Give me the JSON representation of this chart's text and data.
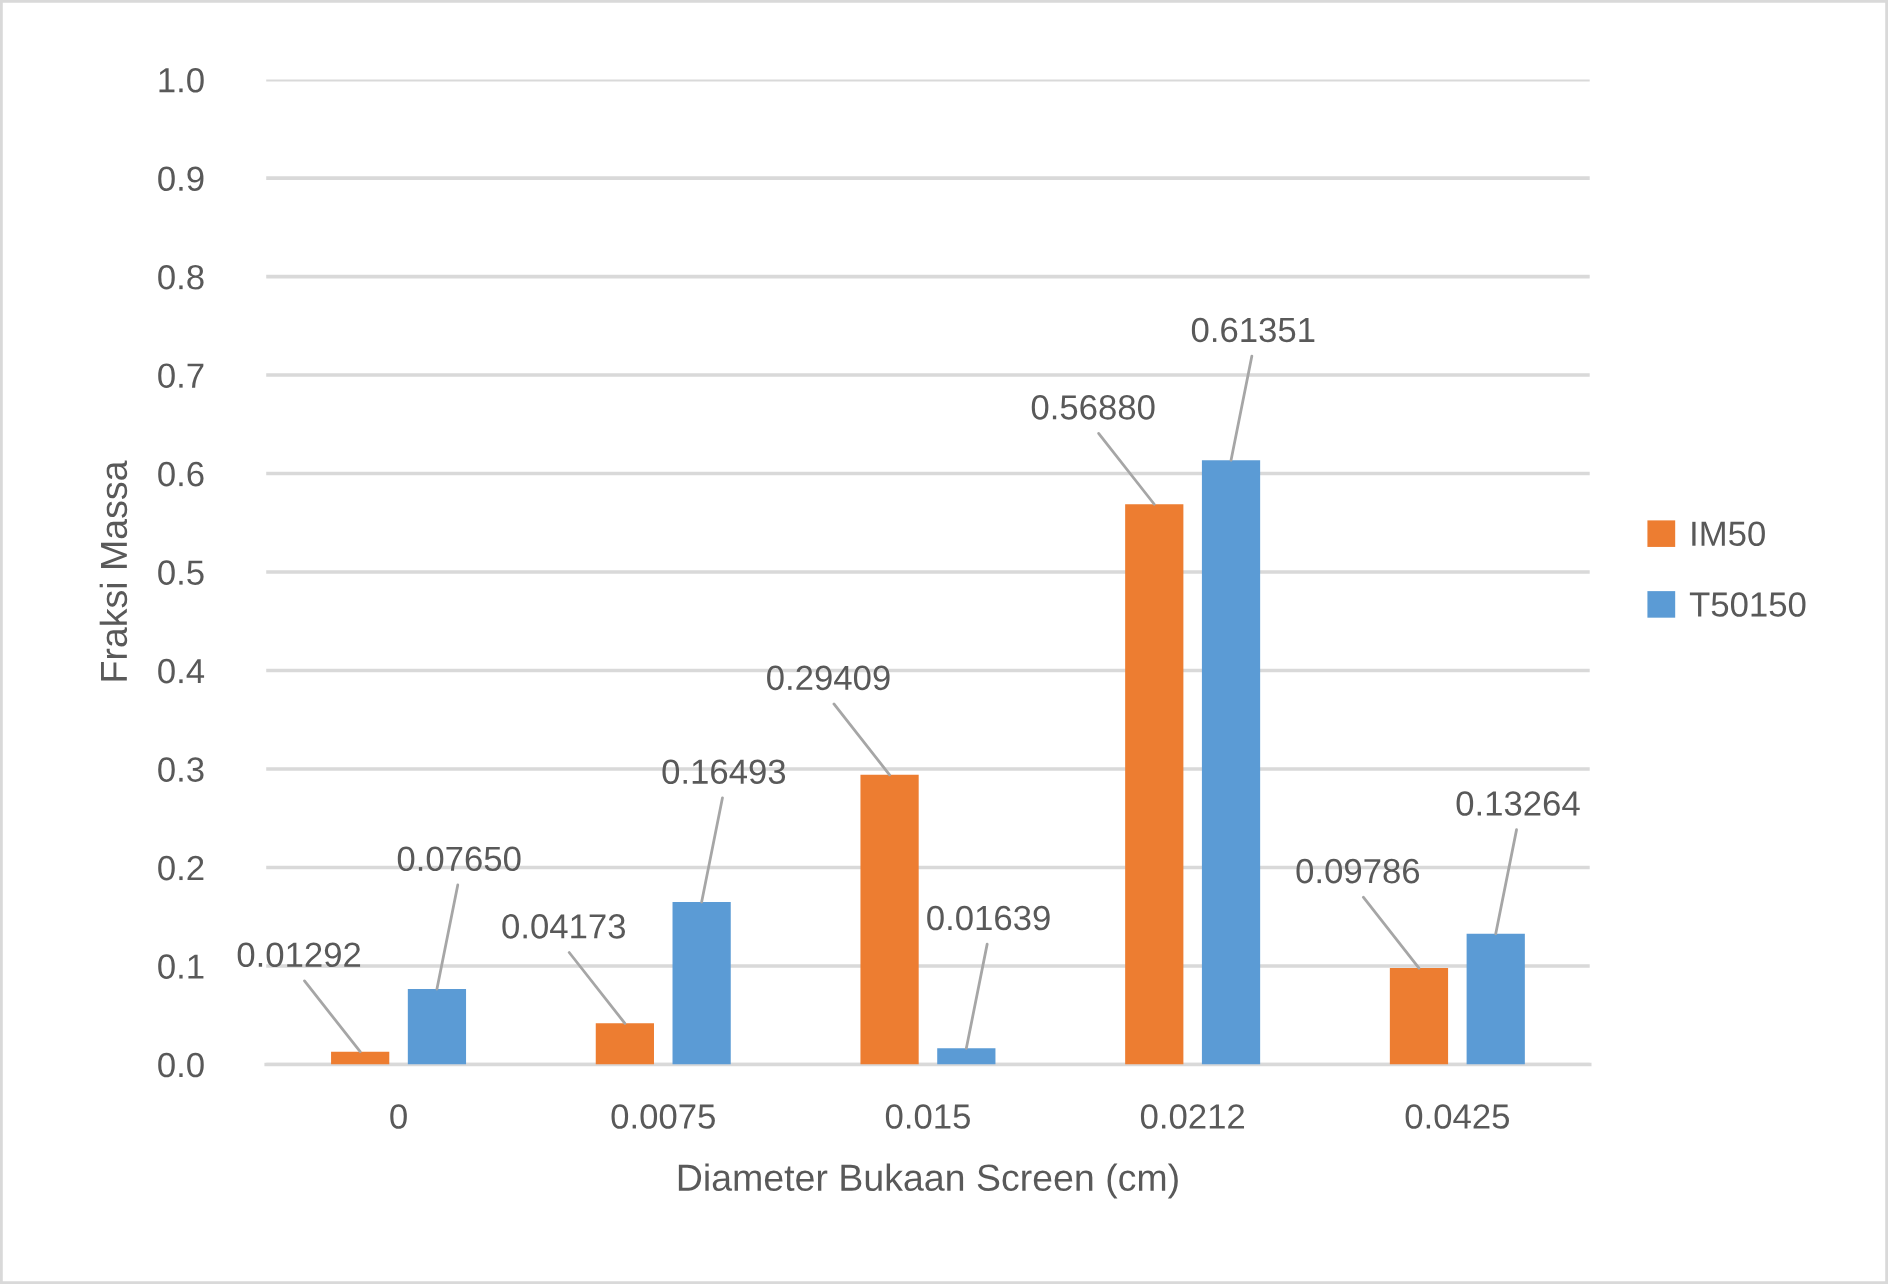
{
  "chart_data": {
    "type": "bar",
    "xlabel": "Diameter Bukaan Screen (cm)",
    "ylabel": "Fraksi Massa",
    "categories": [
      "0",
      "0.0075",
      "0.015",
      "0.0212",
      "0.0425"
    ],
    "series": [
      {
        "name": "IM50",
        "color": "#ed7d31",
        "values": [
          0.01292,
          0.04173,
          0.29409,
          0.5688,
          0.09786
        ],
        "value_labels": [
          "0.01292",
          "0.04173",
          "0.29409",
          "0.56880",
          "0.09786"
        ]
      },
      {
        "name": "T50150",
        "color": "#5b9bd5",
        "values": [
          0.0765,
          0.16493,
          0.01639,
          0.61351,
          0.13264
        ],
        "value_labels": [
          "0.07650",
          "0.16493",
          "0.01639",
          "0.61351",
          "0.13264"
        ]
      }
    ],
    "ylim": [
      0,
      1
    ],
    "yticks": [
      {
        "value": 0,
        "label": "0.0"
      },
      {
        "value": 0.1,
        "label": "0.1"
      },
      {
        "value": 0.2,
        "label": "0.2"
      },
      {
        "value": 0.3,
        "label": "0.3"
      },
      {
        "value": 0.4,
        "label": "0.4"
      },
      {
        "value": 0.5,
        "label": "0.5"
      },
      {
        "value": 0.6,
        "label": "0.6"
      },
      {
        "value": 0.7,
        "label": "0.7"
      },
      {
        "value": 0.8,
        "label": "0.8"
      },
      {
        "value": 0.9,
        "label": "0.9"
      },
      {
        "value": 1,
        "label": "1.0"
      }
    ],
    "grid": "y",
    "legend": "right"
  }
}
